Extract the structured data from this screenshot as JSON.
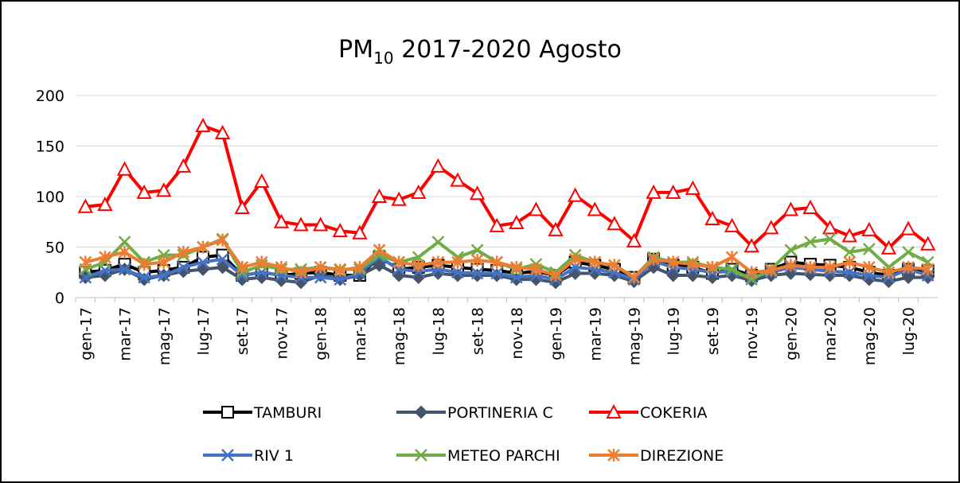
{
  "chart_data": {
    "type": "line",
    "title": {
      "main": "PM",
      "subscript": "10",
      "rest": " 2017-2020 Agosto"
    },
    "categories": [
      "gen-17",
      null,
      "mar-17",
      null,
      "mag-17",
      null,
      "lug-17",
      null,
      "set-17",
      null,
      "nov-17",
      null,
      "gen-18",
      null,
      "mar-18",
      null,
      "mag-18",
      null,
      "lug-18",
      null,
      "set-18",
      null,
      "nov-18",
      null,
      "gen-19",
      null,
      "mar-19",
      null,
      "mag-19",
      null,
      "lug-19",
      null,
      "set-19",
      null,
      "nov-19",
      null,
      "gen-20",
      null,
      "mar-20",
      null,
      "mag-20",
      null,
      "lug-20",
      null
    ],
    "ylim": [
      0,
      200
    ],
    "yticks": [
      0,
      50,
      100,
      150,
      200
    ],
    "grid": true,
    "series": [
      {
        "name": "TAMBURI",
        "color": "#000000",
        "marker": "square",
        "values": [
          25,
          27,
          33,
          25,
          27,
          30,
          40,
          42,
          22,
          25,
          22,
          24,
          25,
          22,
          22,
          40,
          28,
          30,
          32,
          30,
          28,
          27,
          24,
          26,
          22,
          35,
          32,
          28,
          20,
          38,
          32,
          30,
          24,
          28,
          22,
          28,
          35,
          33,
          32,
          30,
          25,
          22,
          28,
          27
        ]
      },
      {
        "name": "PORTINERIA C",
        "color": "#44546a",
        "marker": "diamond",
        "values": [
          20,
          22,
          28,
          18,
          22,
          26,
          28,
          30,
          18,
          20,
          17,
          15,
          22,
          18,
          22,
          32,
          22,
          20,
          24,
          22,
          22,
          22,
          18,
          18,
          15,
          24,
          24,
          22,
          16,
          30,
          22,
          22,
          20,
          22,
          17,
          22,
          24,
          23,
          22,
          22,
          18,
          16,
          20,
          20
        ]
      },
      {
        "name": "COKERIA",
        "color": "#ff0000",
        "marker": "triangle",
        "values": [
          90,
          92,
          127,
          104,
          106,
          130,
          170,
          163,
          89,
          115,
          75,
          72,
          72,
          66,
          64,
          100,
          97,
          104,
          130,
          116,
          103,
          71,
          74,
          87,
          67,
          101,
          87,
          73,
          56,
          104,
          104,
          108,
          78,
          71,
          51,
          69,
          87,
          89,
          69,
          61,
          67,
          49,
          68,
          53
        ]
      },
      {
        "name": "RIV 1",
        "color": "#4472c4",
        "marker": "x",
        "values": [
          20,
          27,
          28,
          20,
          22,
          30,
          35,
          38,
          22,
          25,
          22,
          20,
          20,
          18,
          24,
          40,
          28,
          26,
          28,
          25,
          24,
          24,
          20,
          22,
          18,
          30,
          28,
          25,
          18,
          36,
          30,
          28,
          25,
          26,
          20,
          25,
          30,
          28,
          26,
          25,
          22,
          20,
          28,
          22
        ]
      },
      {
        "name": "METEO PARCHI",
        "color": "#70ad47",
        "marker": "x",
        "values": [
          28,
          35,
          55,
          35,
          42,
          42,
          50,
          58,
          25,
          32,
          28,
          28,
          30,
          28,
          28,
          42,
          35,
          40,
          55,
          40,
          47,
          35,
          28,
          33,
          25,
          42,
          35,
          32,
          20,
          40,
          35,
          35,
          30,
          28,
          18,
          28,
          47,
          55,
          58,
          45,
          48,
          30,
          45,
          35
        ]
      },
      {
        "name": "DIREZIONE",
        "color": "#ed7d31",
        "marker": "asterisk",
        "values": [
          35,
          40,
          45,
          33,
          35,
          45,
          50,
          57,
          30,
          35,
          30,
          25,
          30,
          27,
          30,
          47,
          35,
          32,
          35,
          35,
          37,
          35,
          30,
          28,
          22,
          38,
          35,
          32,
          20,
          38,
          35,
          33,
          30,
          40,
          25,
          27,
          32,
          30,
          30,
          35,
          30,
          25,
          30,
          28
        ]
      }
    ]
  }
}
